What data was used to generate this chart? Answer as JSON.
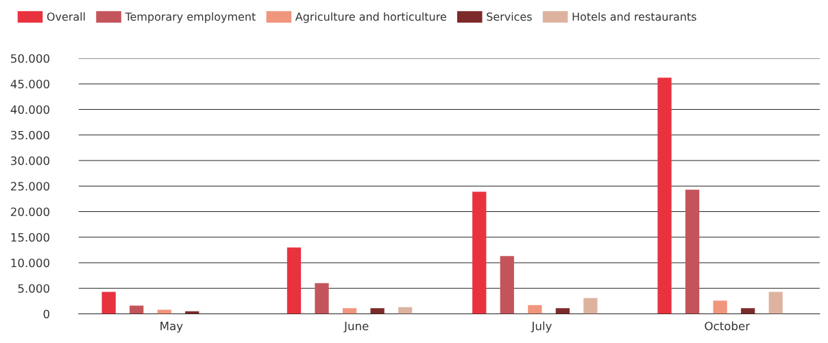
{
  "chart_data": {
    "type": "bar",
    "categories": [
      "May",
      "June",
      "July",
      "October"
    ],
    "series": [
      {
        "name": "Overall",
        "color": "#e8333f",
        "values": [
          4300,
          13000,
          23900,
          46200
        ]
      },
      {
        "name": "Temporary employment",
        "color": "#c4545b",
        "values": [
          1600,
          6000,
          11300,
          24300
        ]
      },
      {
        "name": "Agriculture and horticulture",
        "color": "#f0967c",
        "values": [
          800,
          1100,
          1700,
          2600
        ]
      },
      {
        "name": "Services",
        "color": "#7d2a2a",
        "values": [
          500,
          1100,
          1100,
          1100
        ]
      },
      {
        "name": "Hotels and restaurants",
        "color": "#ddb3a0",
        "values": [
          null,
          1300,
          3100,
          4300
        ]
      }
    ],
    "ylim": [
      0,
      50000
    ],
    "yticks": [
      {
        "value": 0,
        "label": "0"
      },
      {
        "value": 5000,
        "label": "5.000"
      },
      {
        "value": 10000,
        "label": "10.000"
      },
      {
        "value": 15000,
        "label": "15.000"
      },
      {
        "value": 20000,
        "label": "20.000"
      },
      {
        "value": 25000,
        "label": "25.000"
      },
      {
        "value": 30000,
        "label": "30.000"
      },
      {
        "value": 35000,
        "label": "35.000"
      },
      {
        "value": 40000,
        "label": "40.000"
      },
      {
        "value": 45000,
        "label": "45.000"
      },
      {
        "value": 50000,
        "label": "50.000"
      }
    ],
    "grid": "y",
    "legend": "top left"
  }
}
